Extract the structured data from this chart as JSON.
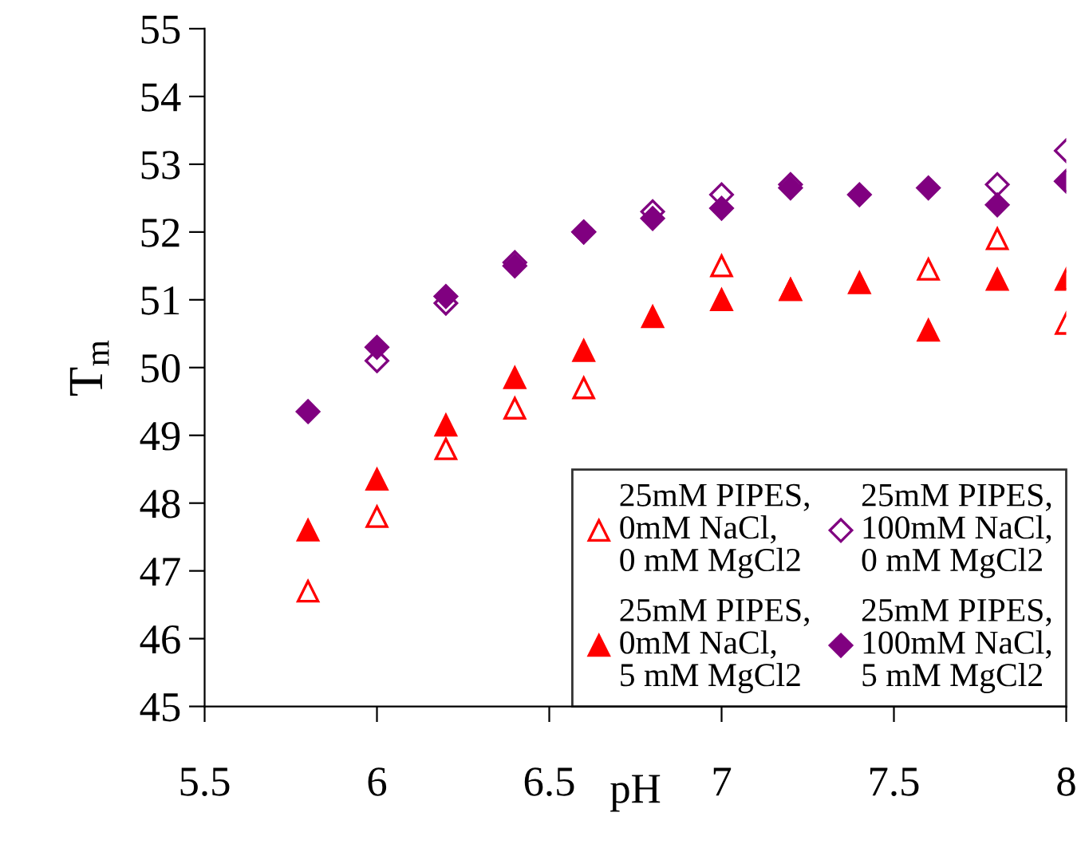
{
  "chart_data": {
    "type": "scatter",
    "xlabel": "pH",
    "ylabel": "T$_{m}$",
    "x": [
      5.8,
      6.0,
      6.2,
      6.4,
      6.6,
      6.8,
      7.0,
      7.2,
      7.4,
      7.6,
      7.8,
      8.0
    ],
    "series": [
      {
        "name": "25mM PIPES,\n0mM NaCl,\n0 mM MgCl2",
        "color": "#ff0000",
        "marker": "triangle-open",
        "values": [
          46.7,
          47.8,
          48.8,
          49.4,
          49.7,
          null,
          51.5,
          51.15,
          null,
          51.45,
          51.9,
          50.65
        ]
      },
      {
        "name": "25mM PIPES,\n0mM NaCl,\n5 mM MgCl2",
        "color": "#ff0000",
        "marker": "triangle",
        "values": [
          47.6,
          48.35,
          49.15,
          49.85,
          50.25,
          50.75,
          51.0,
          51.15,
          51.25,
          50.55,
          51.3,
          51.3
        ]
      },
      {
        "name": "25mM PIPES,\n100mM NaCl,\n0 mM MgCl2",
        "color": "#800080",
        "marker": "diamond-open",
        "values": [
          null,
          50.1,
          50.95,
          51.55,
          52.0,
          52.3,
          52.55,
          52.7,
          null,
          null,
          52.7,
          53.2
        ]
      },
      {
        "name": "25mM PIPES,\n100mM NaCl,\n5 mM MgCl2",
        "color": "#800080",
        "marker": "diamond",
        "values": [
          49.35,
          50.3,
          51.05,
          51.5,
          52.0,
          52.2,
          52.35,
          52.65,
          52.55,
          52.65,
          52.4,
          52.75
        ]
      }
    ],
    "xlim": [
      5.5,
      8
    ],
    "xticks": [
      5.5,
      6,
      6.5,
      7,
      7.5,
      8
    ],
    "ylim": [
      45,
      55
    ],
    "yticks": [
      45,
      46,
      47,
      48,
      49,
      50,
      51,
      52,
      53,
      54,
      55
    ],
    "grid": false,
    "legend": "bottom right"
  }
}
